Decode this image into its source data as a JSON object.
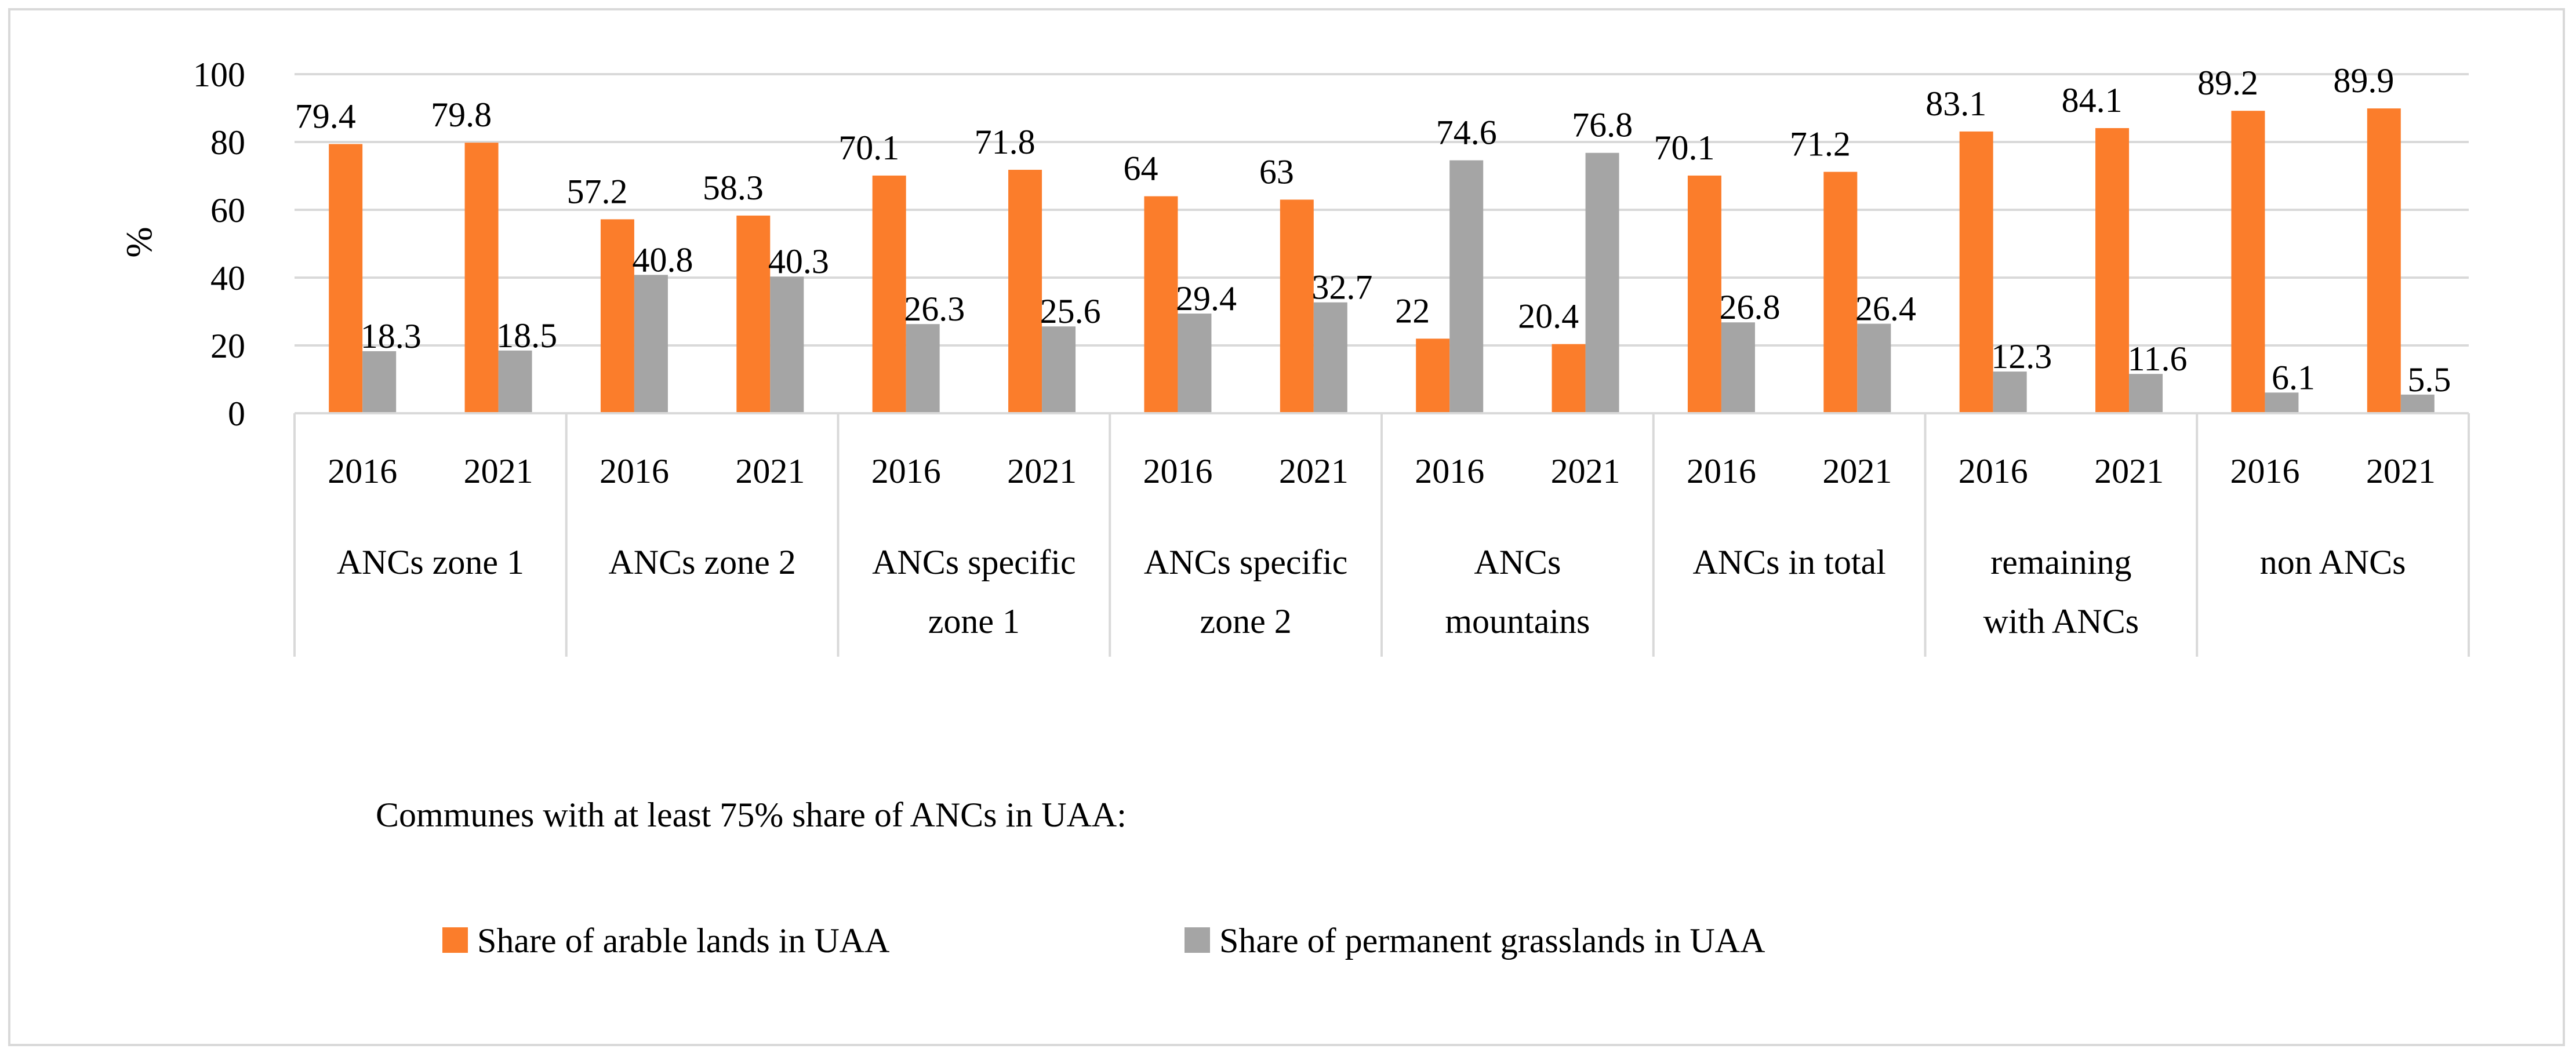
{
  "chart_data": {
    "type": "bar",
    "ylabel": "%",
    "ylim": [
      0,
      100
    ],
    "yticks": [
      0,
      20,
      40,
      60,
      80,
      100
    ],
    "grid": true,
    "legend_placement": "bottom",
    "legend_title": "Communes with at least 75% share of ANCs in UAA:",
    "groups": [
      {
        "label": [
          "ANCs zone 1"
        ],
        "years": [
          "2016",
          "2021"
        ]
      },
      {
        "label": [
          "ANCs zone 2"
        ],
        "years": [
          "2016",
          "2021"
        ]
      },
      {
        "label": [
          "ANCs specific",
          "zone 1"
        ],
        "years": [
          "2016",
          "2021"
        ]
      },
      {
        "label": [
          "ANCs specific",
          "zone 2"
        ],
        "years": [
          "2016",
          "2021"
        ]
      },
      {
        "label": [
          "ANCs",
          "mountains"
        ],
        "years": [
          "2016",
          "2021"
        ]
      },
      {
        "label": [
          "ANCs in total"
        ],
        "years": [
          "2016",
          "2021"
        ]
      },
      {
        "label": [
          "remaining",
          "with ANCs"
        ],
        "years": [
          "2016",
          "2021"
        ]
      },
      {
        "label": [
          "non ANCs"
        ],
        "years": [
          "2016",
          "2021"
        ]
      }
    ],
    "series": [
      {
        "name": "Share of arable lands in UAA",
        "color": "#fb7d2b",
        "values": [
          79.4,
          79.8,
          57.2,
          58.3,
          70.1,
          71.8,
          64,
          63,
          22,
          20.4,
          70.1,
          71.2,
          83.1,
          84.1,
          89.2,
          89.9
        ],
        "value_labels": [
          "79.4",
          "79.8",
          "57.2",
          "58.3",
          "70.1",
          "71.8",
          "64",
          "63",
          "22",
          "20.4",
          "70.1",
          "71.2",
          "83.1",
          "84.1",
          "89.2",
          "89.9"
        ]
      },
      {
        "name": "Share of permanent grasslands in UAA",
        "color": "#a5a5a5",
        "values": [
          18.3,
          18.5,
          40.8,
          40.3,
          26.3,
          25.6,
          29.4,
          32.7,
          74.6,
          76.8,
          26.8,
          26.4,
          12.3,
          11.6,
          6.1,
          5.5
        ],
        "value_labels": [
          "18.3",
          "18.5",
          "40.8",
          "40.3",
          "26.3",
          "25.6",
          "29.4",
          "32.7",
          "74.6",
          "76.8",
          "26.8",
          "26.4",
          "12.3",
          "11.6",
          "6.1",
          "5.5"
        ]
      }
    ]
  }
}
